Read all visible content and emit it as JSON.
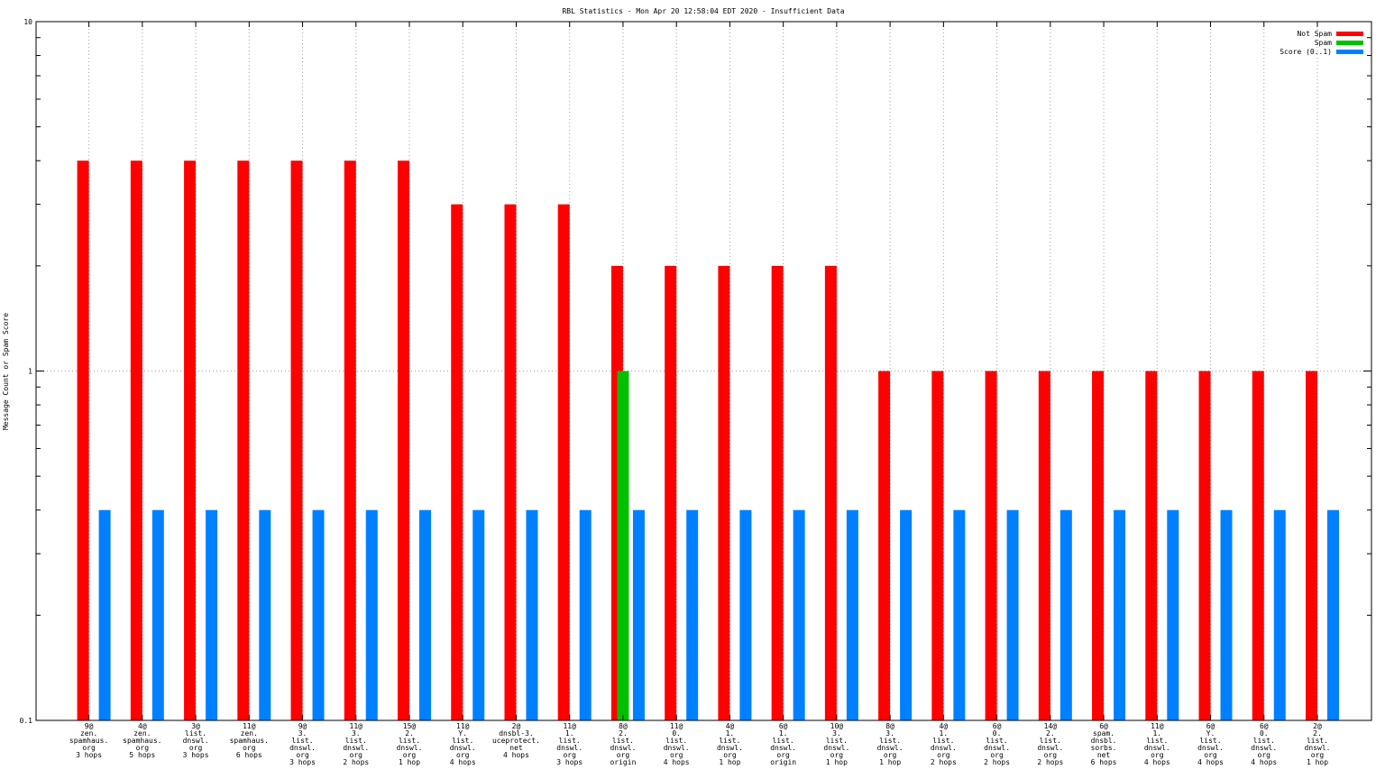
{
  "chart_data": {
    "type": "bar",
    "title": "RBL Statistics - Mon Apr 20 12:58:04 EDT 2020 - Insufficient Data",
    "ylabel": "Message Count or Spam Score",
    "xlabel": "",
    "yscale": "log",
    "ylim": [
      0.1,
      10
    ],
    "yticks": [
      "0.1",
      "1",
      "10"
    ],
    "grid": true,
    "legend_position": "top-right",
    "categories": [
      [
        "9@",
        "zen.",
        "spamhaus.",
        "org",
        "3 hops"
      ],
      [
        "4@",
        "zen.",
        "spamhaus.",
        "org",
        "5 hops"
      ],
      [
        "3@",
        "list.",
        "dnswl.",
        "org",
        "3 hops"
      ],
      [
        "11@",
        "zen.",
        "spamhaus.",
        "org",
        "6 hops"
      ],
      [
        "9@",
        "3.",
        "list.",
        "dnswl.",
        "org",
        "3 hops"
      ],
      [
        "11@",
        "3.",
        "list.",
        "dnswl.",
        "org",
        "2 hops"
      ],
      [
        "15@",
        "2.",
        "list.",
        "dnswl.",
        "org",
        "1 hop"
      ],
      [
        "11@",
        "Y.",
        "list.",
        "dnswl.",
        "org",
        "4 hops"
      ],
      [
        "2@",
        "dnsbl-3.",
        "uceprotect.",
        "net",
        "4 hops"
      ],
      [
        "11@",
        "1.",
        "list.",
        "dnswl.",
        "org",
        "3 hops"
      ],
      [
        "8@",
        "2.",
        "list.",
        "dnswl.",
        "org",
        "origin"
      ],
      [
        "11@",
        "0.",
        "list.",
        "dnswl.",
        "org",
        "4 hops"
      ],
      [
        "4@",
        "1.",
        "list.",
        "dnswl.",
        "org",
        "1 hop"
      ],
      [
        "6@",
        "1.",
        "list.",
        "dnswl.",
        "org",
        "origin"
      ],
      [
        "10@",
        "3.",
        "list.",
        "dnswl.",
        "org",
        "1 hop"
      ],
      [
        "8@",
        "3.",
        "list.",
        "dnswl.",
        "org",
        "1 hop"
      ],
      [
        "4@",
        "1.",
        "list.",
        "dnswl.",
        "org",
        "2 hops"
      ],
      [
        "6@",
        "0.",
        "list.",
        "dnswl.",
        "org",
        "2 hops"
      ],
      [
        "14@",
        "2.",
        "list.",
        "dnswl.",
        "org",
        "2 hops"
      ],
      [
        "6@",
        "spam.",
        "dnsbl.",
        "sorbs.",
        "net",
        "6 hops"
      ],
      [
        "11@",
        "1.",
        "list.",
        "dnswl.",
        "org",
        "4 hops"
      ],
      [
        "6@",
        "Y.",
        "list.",
        "dnswl.",
        "org",
        "4 hops"
      ],
      [
        "6@",
        "0.",
        "list.",
        "dnswl.",
        "org",
        "4 hops"
      ],
      [
        "2@",
        "2.",
        "list.",
        "dnswl.",
        "org",
        "1 hop"
      ]
    ],
    "series": [
      {
        "name": "Not Spam",
        "color": "#ff0000",
        "values": [
          4,
          4,
          4,
          4,
          4,
          4,
          4,
          3,
          3,
          3,
          2,
          2,
          2,
          2,
          2,
          1,
          1,
          1,
          1,
          1,
          1,
          1,
          1,
          1
        ]
      },
      {
        "name": "Spam",
        "color": "#00c000",
        "values": [
          0,
          0,
          0,
          0,
          0,
          0,
          0,
          0,
          0,
          0,
          1,
          0,
          0,
          0,
          0,
          0,
          0,
          0,
          0,
          0,
          0,
          0,
          0,
          0
        ]
      },
      {
        "name": "Score (0..1)",
        "color": "#0080ff",
        "values": [
          0.4,
          0.4,
          0.4,
          0.4,
          0.4,
          0.4,
          0.4,
          0.4,
          0.4,
          0.4,
          0.4,
          0.4,
          0.4,
          0.4,
          0.4,
          0.4,
          0.4,
          0.4,
          0.4,
          0.4,
          0.4,
          0.4,
          0.4,
          0.4
        ]
      }
    ]
  }
}
